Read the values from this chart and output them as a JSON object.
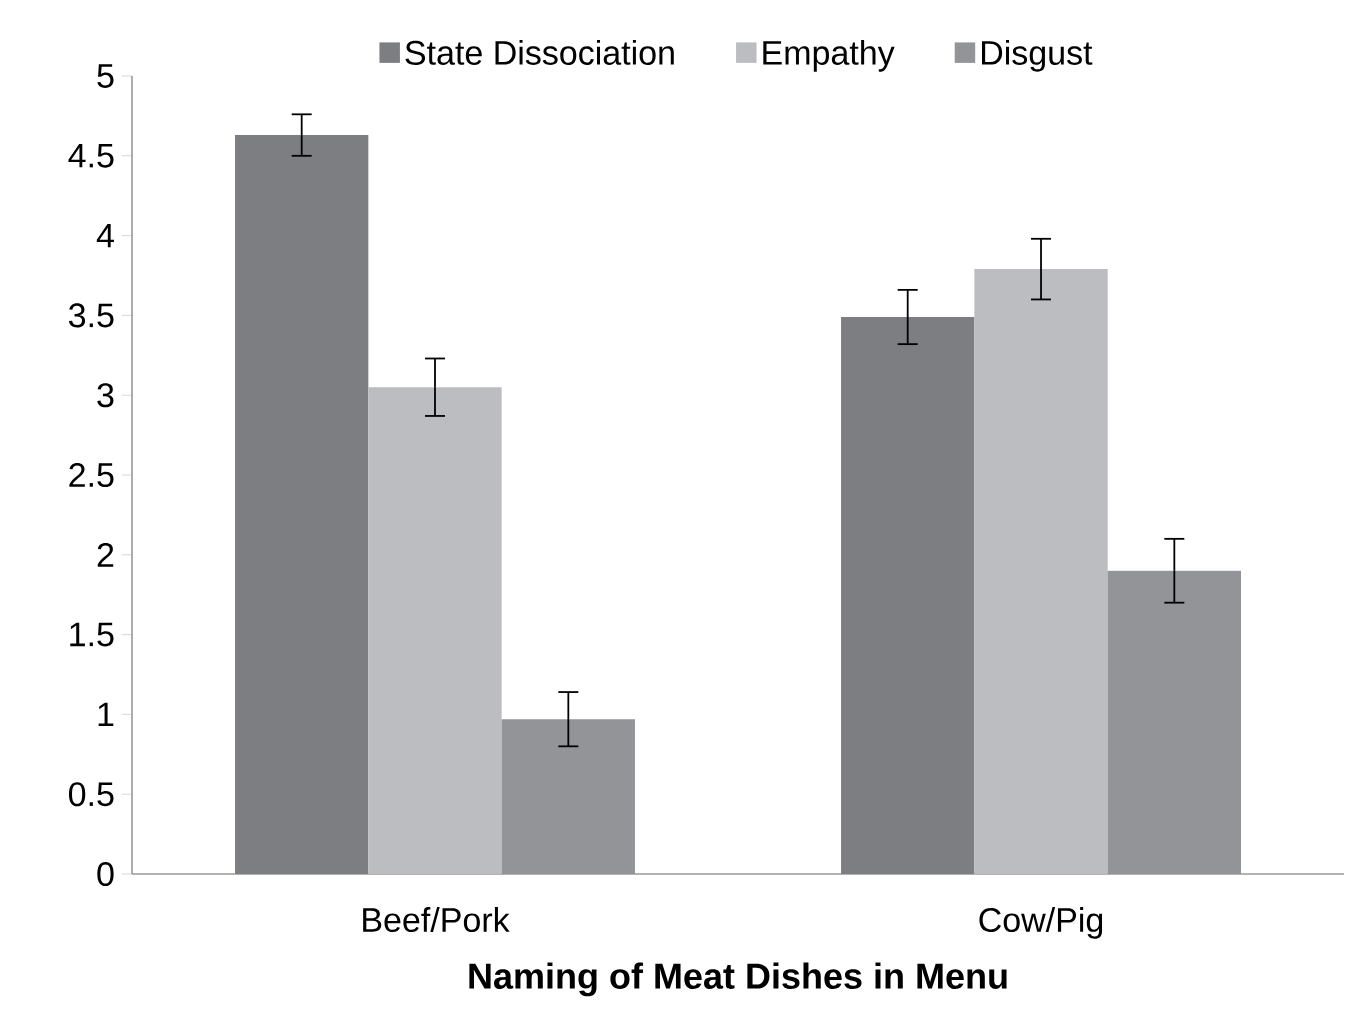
{
  "chart_data": {
    "type": "bar",
    "xlabel": "Naming of Meat Dishes in Menu",
    "categories": [
      "Beef/Pork",
      "Cow/Pig"
    ],
    "series": [
      {
        "name": "State Dissociation",
        "color": "#7d7e82",
        "values": [
          4.63,
          3.49
        ],
        "errors": [
          0.13,
          0.17
        ]
      },
      {
        "name": "Empathy",
        "color": "#bcbdc1",
        "values": [
          3.05,
          3.79
        ],
        "errors": [
          0.18,
          0.19
        ]
      },
      {
        "name": "Disgust",
        "color": "#939497",
        "values": [
          0.97,
          1.9
        ],
        "errors": [
          0.17,
          0.2
        ]
      }
    ],
    "ylim": [
      0,
      5
    ],
    "yticks": [
      0,
      0.5,
      1,
      1.5,
      2,
      2.5,
      3,
      3.5,
      4,
      4.5,
      5
    ],
    "grid": false,
    "legend": "top"
  }
}
